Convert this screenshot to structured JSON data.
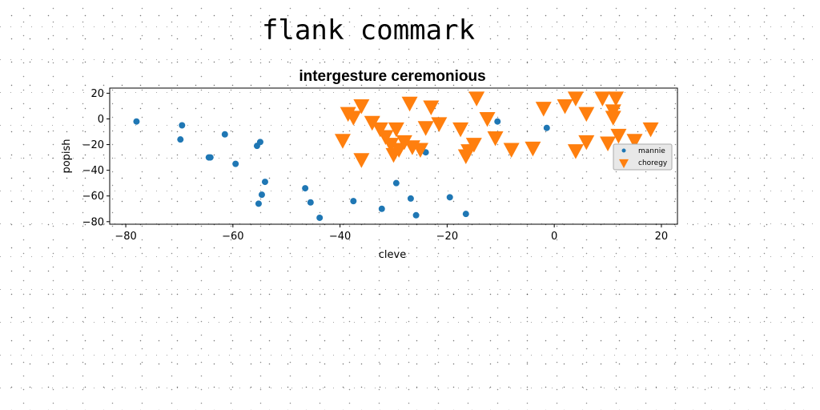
{
  "figure": {
    "title": "flank commark"
  },
  "chart_data": {
    "type": "scatter",
    "title": "intergesture ceremonious",
    "xlabel": "cleve",
    "ylabel": "popish",
    "xlim": [
      -83,
      23
    ],
    "ylim": [
      -82,
      24
    ],
    "xticks": [
      -80,
      -60,
      -40,
      -20,
      0,
      20
    ],
    "yticks": [
      20,
      0,
      -20,
      -40,
      -60,
      -80
    ],
    "grid": false,
    "legend_position": "right",
    "series": [
      {
        "name": "mannie",
        "marker": "circle",
        "color": "#1f77b4",
        "points": [
          {
            "x": -78,
            "y": -2
          },
          {
            "x": -69.5,
            "y": -5
          },
          {
            "x": -69.8,
            "y": -16
          },
          {
            "x": -64.5,
            "y": -30
          },
          {
            "x": -64.2,
            "y": -30
          },
          {
            "x": -61.5,
            "y": -12
          },
          {
            "x": -59.5,
            "y": -35
          },
          {
            "x": -55.5,
            "y": -21
          },
          {
            "x": -54.9,
            "y": -18
          },
          {
            "x": -55.2,
            "y": -66
          },
          {
            "x": -54.6,
            "y": -59
          },
          {
            "x": -54,
            "y": -49
          },
          {
            "x": -46.5,
            "y": -54
          },
          {
            "x": -45.5,
            "y": -65
          },
          {
            "x": -43.8,
            "y": -77
          },
          {
            "x": -37.5,
            "y": -64
          },
          {
            "x": -32.2,
            "y": -70
          },
          {
            "x": -29.5,
            "y": -50
          },
          {
            "x": -26.8,
            "y": -62
          },
          {
            "x": -25.8,
            "y": -75
          },
          {
            "x": -24,
            "y": -26
          },
          {
            "x": -19.5,
            "y": -61
          },
          {
            "x": -16.5,
            "y": -74
          },
          {
            "x": -10.6,
            "y": -2
          },
          {
            "x": -1.4,
            "y": -7
          }
        ]
      },
      {
        "name": "choregy",
        "marker": "triangle-down",
        "color": "#ff7f0e",
        "points": [
          {
            "x": -38.5,
            "y": 4
          },
          {
            "x": -37.5,
            "y": 1
          },
          {
            "x": -36,
            "y": 10
          },
          {
            "x": -39.5,
            "y": -17
          },
          {
            "x": -36,
            "y": -32
          },
          {
            "x": -34,
            "y": -3
          },
          {
            "x": -32.5,
            "y": -8
          },
          {
            "x": -31.5,
            "y": -14
          },
          {
            "x": -30.5,
            "y": -20
          },
          {
            "x": -30,
            "y": -28
          },
          {
            "x": -29.5,
            "y": -8
          },
          {
            "x": -29,
            "y": -24
          },
          {
            "x": -28,
            "y": -18
          },
          {
            "x": -27,
            "y": 12
          },
          {
            "x": -26.5,
            "y": -22
          },
          {
            "x": -25,
            "y": -24
          },
          {
            "x": -24,
            "y": -7
          },
          {
            "x": -23,
            "y": 9
          },
          {
            "x": -21.5,
            "y": -4
          },
          {
            "x": -17.5,
            "y": -8
          },
          {
            "x": -16.5,
            "y": -29
          },
          {
            "x": -16,
            "y": -25
          },
          {
            "x": -15,
            "y": -20
          },
          {
            "x": -14.5,
            "y": 16
          },
          {
            "x": -12.5,
            "y": 0
          },
          {
            "x": -11,
            "y": -15
          },
          {
            "x": -8,
            "y": -24
          },
          {
            "x": -4,
            "y": -23
          },
          {
            "x": -2,
            "y": 8
          },
          {
            "x": 2,
            "y": 10
          },
          {
            "x": 4,
            "y": 16
          },
          {
            "x": 4,
            "y": -25
          },
          {
            "x": 6,
            "y": 4
          },
          {
            "x": 6,
            "y": -18
          },
          {
            "x": 9,
            "y": 16
          },
          {
            "x": 10,
            "y": -19
          },
          {
            "x": 11,
            "y": 6
          },
          {
            "x": 11,
            "y": 1
          },
          {
            "x": 11.5,
            "y": 16
          },
          {
            "x": 12,
            "y": -13
          },
          {
            "x": 15,
            "y": -17
          },
          {
            "x": 18,
            "y": -8
          }
        ]
      }
    ]
  }
}
